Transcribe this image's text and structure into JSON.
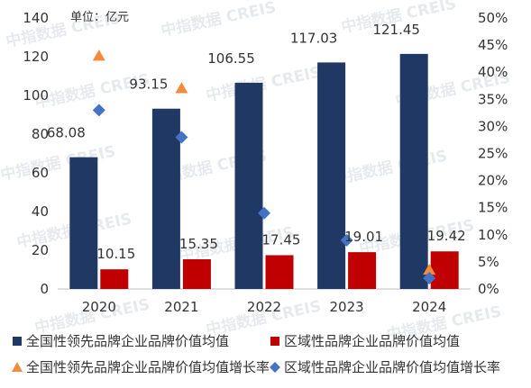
{
  "chart_data": {
    "type": "bar",
    "unit": "单位：亿元",
    "categories": [
      "2020",
      "2021",
      "2022",
      "2023",
      "2024"
    ],
    "series": [
      {
        "name": "全国性领先品牌企业品牌价值均值",
        "type": "bar",
        "axis": "left",
        "color": "#1f3864",
        "values": [
          68.08,
          93.15,
          106.55,
          117.03,
          121.45
        ],
        "labels": [
          "68.08",
          "93.15",
          "106.55",
          "117.03",
          "121.45"
        ]
      },
      {
        "name": "区域性品牌企业品牌价值均值",
        "type": "bar",
        "axis": "left",
        "color": "#c00000",
        "values": [
          10.15,
          15.35,
          17.45,
          19.01,
          19.42
        ],
        "labels": [
          "10.15",
          "15.35",
          "17.45",
          "19.01",
          "19.42"
        ]
      },
      {
        "name": "全国性领先品牌企业品牌价值均值增长率",
        "type": "scatter",
        "marker": "triangle",
        "axis": "right",
        "color": "#f08c3c",
        "values": [
          0.43,
          0.37,
          null,
          null,
          0.035
        ]
      },
      {
        "name": "区域性品牌企业品牌价值均值增长率",
        "type": "scatter",
        "marker": "diamond",
        "axis": "right",
        "color": "#4472c4",
        "values": [
          0.33,
          0.28,
          0.14,
          0.09,
          0.02
        ]
      }
    ],
    "y_left": {
      "min": 0,
      "max": 140,
      "ticks": [
        0,
        20,
        40,
        60,
        80,
        100,
        120,
        140
      ]
    },
    "y_right": {
      "min": 0,
      "max": 0.5,
      "ticks": [
        "0%",
        "5%",
        "10%",
        "15%",
        "20%",
        "25%",
        "30%",
        "35%",
        "40%",
        "45%",
        "50%"
      ]
    },
    "grid": false,
    "legend_position": "bottom"
  },
  "watermark": {
    "text": "中指数据 CREIS",
    "color": "#d4d9e0"
  }
}
